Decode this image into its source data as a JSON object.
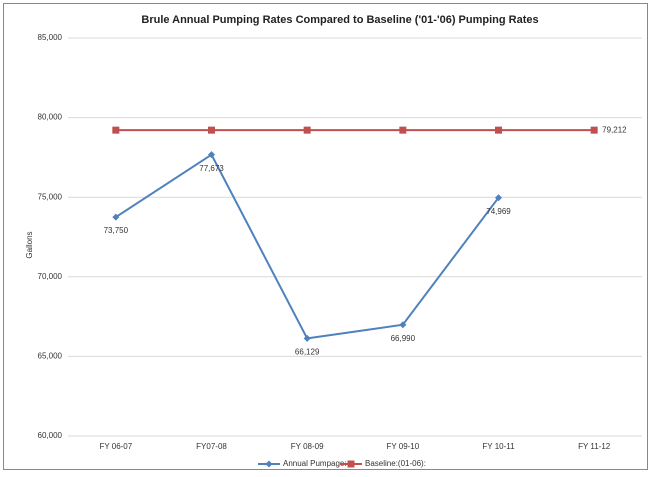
{
  "chart_data": {
    "type": "line",
    "title": "Brule Annual Pumping Rates Compared to Baseline ('01-'06) Pumping Rates",
    "y_label": "Gallons",
    "categories": [
      "FY 06-07",
      "FY07-08",
      "FY 08-09",
      "FY 09-10",
      "FY 10-11",
      "FY 11-12"
    ],
    "series": [
      {
        "name": "Annual Pumpage:",
        "color": "#4f81bd",
        "marker": "diamond",
        "values": [
          73750,
          77673,
          66129,
          66990,
          74969,
          null
        ],
        "value_labels": [
          "73,750",
          "77,673",
          "66,129",
          "66,990",
          "74,969",
          null
        ]
      },
      {
        "name": "Baseline:(01-06):",
        "color": "#c0504d",
        "marker": "square",
        "values": [
          79212,
          79212,
          79212,
          79212,
          79212,
          79212
        ],
        "value_labels": [
          null,
          null,
          null,
          null,
          null,
          "79,212"
        ]
      }
    ],
    "ylim": [
      60000,
      85000
    ],
    "yticks": [
      {
        "value": 60000,
        "label": "60,000"
      },
      {
        "value": 65000,
        "label": "65,000"
      },
      {
        "value": 70000,
        "label": "70,000"
      },
      {
        "value": 75000,
        "label": "75,000"
      },
      {
        "value": 80000,
        "label": "80,000"
      },
      {
        "value": 85000,
        "label": "85,000"
      }
    ],
    "grid": true,
    "legend": "bottom"
  }
}
